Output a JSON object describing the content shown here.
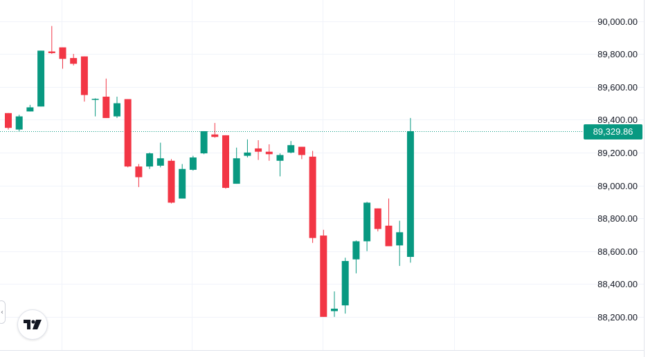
{
  "chart_data": {
    "type": "candlestick",
    "y_range": [
      88100,
      90100
    ],
    "y_ticks": [
      "90,000.00",
      "89,800.00",
      "89,600.00",
      "89,400.00",
      "89,200.00",
      "89,000.00",
      "88,800.00",
      "88,600.00",
      "88,400.00",
      "88,200.00"
    ],
    "y_tick_values": [
      90000,
      89800,
      89600,
      89400,
      89200,
      89000,
      88800,
      88600,
      88400,
      88200
    ],
    "last_price": 89329.86,
    "last_price_label": "89,329.86",
    "colors": {
      "up": "#089981",
      "down": "#f23645",
      "grid": "#f0f3fa",
      "axis_text": "#131722"
    },
    "candles": [
      {
        "o": 89440,
        "h": 89440,
        "l": 89340,
        "c": 89350
      },
      {
        "o": 89340,
        "h": 89430,
        "l": 89330,
        "c": 89420
      },
      {
        "o": 89450,
        "h": 89490,
        "l": 89450,
        "c": 89475
      },
      {
        "o": 89480,
        "h": 89820,
        "l": 89480,
        "c": 89820
      },
      {
        "o": 89815,
        "h": 89970,
        "l": 89800,
        "c": 89805
      },
      {
        "o": 89840,
        "h": 89840,
        "l": 89710,
        "c": 89770
      },
      {
        "o": 89775,
        "h": 89800,
        "l": 89730,
        "c": 89740
      },
      {
        "o": 89785,
        "h": 89785,
        "l": 89510,
        "c": 89550
      },
      {
        "o": 89525,
        "h": 89530,
        "l": 89420,
        "c": 89527
      },
      {
        "o": 89540,
        "h": 89650,
        "l": 89410,
        "c": 89410
      },
      {
        "o": 89420,
        "h": 89540,
        "l": 89410,
        "c": 89500
      },
      {
        "o": 89525,
        "h": 89525,
        "l": 89110,
        "c": 89115
      },
      {
        "o": 89115,
        "h": 89130,
        "l": 88990,
        "c": 89050
      },
      {
        "o": 89115,
        "h": 89200,
        "l": 89100,
        "c": 89195
      },
      {
        "o": 89120,
        "h": 89260,
        "l": 89110,
        "c": 89165
      },
      {
        "o": 89150,
        "h": 89160,
        "l": 88890,
        "c": 88895
      },
      {
        "o": 88920,
        "h": 89130,
        "l": 88920,
        "c": 89100
      },
      {
        "o": 89095,
        "h": 89180,
        "l": 89090,
        "c": 89170
      },
      {
        "o": 89195,
        "h": 89330,
        "l": 89190,
        "c": 89330
      },
      {
        "o": 89310,
        "h": 89380,
        "l": 89290,
        "c": 89295
      },
      {
        "o": 89305,
        "h": 89305,
        "l": 88980,
        "c": 88985
      },
      {
        "o": 89010,
        "h": 89230,
        "l": 89010,
        "c": 89165
      },
      {
        "o": 89180,
        "h": 89280,
        "l": 89170,
        "c": 89200
      },
      {
        "o": 89225,
        "h": 89275,
        "l": 89155,
        "c": 89205
      },
      {
        "o": 89205,
        "h": 89250,
        "l": 89150,
        "c": 89190
      },
      {
        "o": 89150,
        "h": 89195,
        "l": 89055,
        "c": 89185
      },
      {
        "o": 89200,
        "h": 89270,
        "l": 89195,
        "c": 89245
      },
      {
        "o": 89235,
        "h": 89235,
        "l": 89160,
        "c": 89185
      },
      {
        "o": 89175,
        "h": 89210,
        "l": 88650,
        "c": 88680
      },
      {
        "o": 88695,
        "h": 88730,
        "l": 88200,
        "c": 88200
      },
      {
        "o": 88235,
        "h": 88355,
        "l": 88200,
        "c": 88250
      },
      {
        "o": 88270,
        "h": 88560,
        "l": 88220,
        "c": 88540
      },
      {
        "o": 88550,
        "h": 88665,
        "l": 88465,
        "c": 88660
      },
      {
        "o": 88660,
        "h": 88900,
        "l": 88600,
        "c": 88895
      },
      {
        "o": 88860,
        "h": 88860,
        "l": 88720,
        "c": 88735
      },
      {
        "o": 88755,
        "h": 88920,
        "l": 88630,
        "c": 88630
      },
      {
        "o": 88635,
        "h": 88785,
        "l": 88510,
        "c": 88715
      },
      {
        "o": 88565,
        "h": 89410,
        "l": 88530,
        "c": 89330
      }
    ]
  },
  "icons": {
    "logo": "tradingview-logo-icon",
    "collapse": "chevron-left-icon"
  },
  "logo_text": "17",
  "collapse_glyph": "‹"
}
